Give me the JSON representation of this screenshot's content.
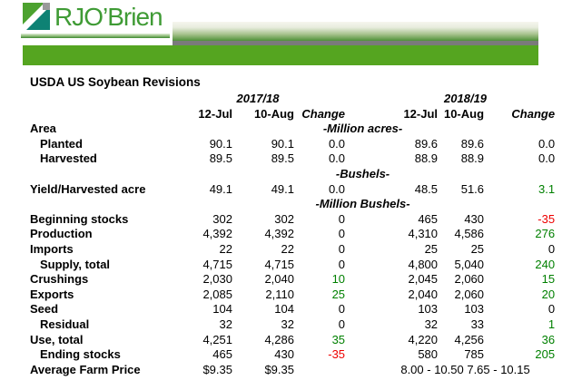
{
  "banner": {
    "logo_text": "RJO’Brien",
    "colors": {
      "banner_green": "#55a520",
      "banner_gray": "#7a7a7a",
      "logo_green": "#4ca22f",
      "logo_teal": "#0e8274"
    }
  },
  "title": "USDA US Soybean Revisions",
  "table": {
    "year_groups": [
      "2017/18",
      "2018/19"
    ],
    "columns": [
      "12-Jul",
      "10-Aug",
      "Change",
      "12-Jul",
      "10-Aug",
      "Change"
    ],
    "value_colors": {
      "positive": "#008000",
      "negative": "#ee0000"
    },
    "rows": [
      {
        "type": "unit",
        "label": "Area",
        "indent": false,
        "unit": "-Million acres-"
      },
      {
        "type": "data",
        "label": "Planted",
        "indent": true,
        "cells": [
          {
            "v": "90.1"
          },
          {
            "v": "90.1"
          },
          {
            "v": "0.0"
          },
          {
            "v": "89.6"
          },
          {
            "v": "89.6"
          },
          {
            "v": "0.0"
          }
        ]
      },
      {
        "type": "data",
        "label": "Harvested",
        "indent": true,
        "cells": [
          {
            "v": "89.5"
          },
          {
            "v": "89.5"
          },
          {
            "v": "0.0"
          },
          {
            "v": "88.9"
          },
          {
            "v": "88.9"
          },
          {
            "v": "0.0"
          }
        ]
      },
      {
        "type": "unit",
        "label": "",
        "indent": false,
        "unit": "-Bushels-"
      },
      {
        "type": "data",
        "label": "Yield/Harvested acre",
        "indent": false,
        "cells": [
          {
            "v": "49.1"
          },
          {
            "v": "49.1"
          },
          {
            "v": "0.0"
          },
          {
            "v": "48.5"
          },
          {
            "v": "51.6"
          },
          {
            "v": "3.1",
            "c": "pos"
          }
        ]
      },
      {
        "type": "unit",
        "label": "",
        "indent": false,
        "unit": "-Million Bushels-"
      },
      {
        "type": "data",
        "label": "Beginning stocks",
        "indent": false,
        "cells": [
          {
            "v": "302"
          },
          {
            "v": "302"
          },
          {
            "v": "0"
          },
          {
            "v": "465"
          },
          {
            "v": "430"
          },
          {
            "v": "-35",
            "c": "neg"
          }
        ]
      },
      {
        "type": "data",
        "label": "Production",
        "indent": false,
        "cells": [
          {
            "v": "4,392"
          },
          {
            "v": "4,392"
          },
          {
            "v": "0"
          },
          {
            "v": "4,310"
          },
          {
            "v": "4,586"
          },
          {
            "v": "276",
            "c": "pos"
          }
        ]
      },
      {
        "type": "data",
        "label": "Imports",
        "indent": false,
        "cells": [
          {
            "v": "22"
          },
          {
            "v": "22"
          },
          {
            "v": "0"
          },
          {
            "v": "25"
          },
          {
            "v": "25"
          },
          {
            "v": "0"
          }
        ]
      },
      {
        "type": "data",
        "label": "Supply, total",
        "indent": true,
        "cells": [
          {
            "v": "4,715"
          },
          {
            "v": "4,715"
          },
          {
            "v": "0"
          },
          {
            "v": "4,800"
          },
          {
            "v": "5,040"
          },
          {
            "v": "240",
            "c": "pos"
          }
        ]
      },
      {
        "type": "data",
        "label": "Crushings",
        "indent": false,
        "cells": [
          {
            "v": "2,030"
          },
          {
            "v": "2,040"
          },
          {
            "v": "10",
            "c": "pos"
          },
          {
            "v": "2,045"
          },
          {
            "v": "2,060"
          },
          {
            "v": "15",
            "c": "pos"
          }
        ]
      },
      {
        "type": "data",
        "label": "Exports",
        "indent": false,
        "cells": [
          {
            "v": "2,085"
          },
          {
            "v": "2,110"
          },
          {
            "v": "25",
            "c": "pos"
          },
          {
            "v": "2,040"
          },
          {
            "v": "2,060"
          },
          {
            "v": "20",
            "c": "pos"
          }
        ]
      },
      {
        "type": "data",
        "label": "Seed",
        "indent": false,
        "cells": [
          {
            "v": "104"
          },
          {
            "v": "104"
          },
          {
            "v": "0"
          },
          {
            "v": "103"
          },
          {
            "v": "103"
          },
          {
            "v": "0"
          }
        ]
      },
      {
        "type": "data",
        "label": "Residual",
        "indent": true,
        "cells": [
          {
            "v": "32"
          },
          {
            "v": "32"
          },
          {
            "v": "0"
          },
          {
            "v": "32"
          },
          {
            "v": "33"
          },
          {
            "v": "1",
            "c": "pos"
          }
        ]
      },
      {
        "type": "data",
        "label": "Use, total",
        "indent": false,
        "cells": [
          {
            "v": "4,251"
          },
          {
            "v": "4,286"
          },
          {
            "v": "35",
            "c": "pos"
          },
          {
            "v": "4,220"
          },
          {
            "v": "4,256"
          },
          {
            "v": "36",
            "c": "pos"
          }
        ]
      },
      {
        "type": "data",
        "label": "Ending stocks",
        "indent": true,
        "cells": [
          {
            "v": "465"
          },
          {
            "v": "430"
          },
          {
            "v": "-35",
            "c": "neg"
          },
          {
            "v": "580"
          },
          {
            "v": "785"
          },
          {
            "v": "205",
            "c": "pos"
          }
        ]
      },
      {
        "type": "data",
        "label": "Average Farm Price",
        "indent": false,
        "cells": [
          {
            "v": "$9.35"
          },
          {
            "v": "$9.35"
          },
          {
            "v": ""
          },
          {
            "v": "8.00 - 10.50 7.65 - 10.15",
            "span": 3,
            "center": true
          }
        ]
      }
    ]
  }
}
